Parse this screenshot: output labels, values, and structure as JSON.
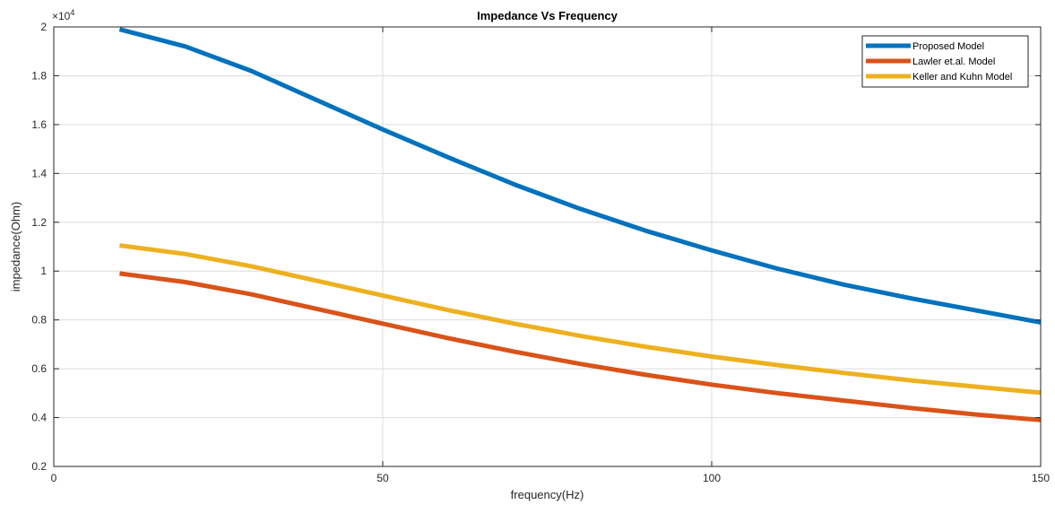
{
  "chart_data": {
    "type": "line",
    "title": "Impedance Vs Frequency",
    "xlabel": "frequency(Hz)",
    "ylabel": "impedance(Ohm)",
    "y_multiplier": "×10",
    "y_multiplier_exp": "4",
    "xlim": [
      0,
      150
    ],
    "ylim": [
      0.2,
      2
    ],
    "xticks": [
      0,
      50,
      100,
      150
    ],
    "xtick_labels": [
      "0",
      "50",
      "100",
      "150"
    ],
    "yticks": [
      0.2,
      0.4,
      0.6,
      0.8,
      1,
      1.2,
      1.4,
      1.6,
      1.8,
      2
    ],
    "ytick_labels": [
      "0.2",
      "0.4",
      "0.6",
      "0.8",
      "1",
      "1.2",
      "1.4",
      "1.6",
      "1.8",
      "2"
    ],
    "grid": true,
    "legend_position": "top-right",
    "x": [
      10,
      20,
      30,
      40,
      50,
      60,
      70,
      80,
      90,
      100,
      110,
      120,
      130,
      140,
      150
    ],
    "series": [
      {
        "name": "Proposed Model",
        "color": "#0072BD",
        "values": [
          1.99,
          1.92,
          1.82,
          1.7,
          1.58,
          1.465,
          1.355,
          1.255,
          1.165,
          1.085,
          1.01,
          0.945,
          0.89,
          0.84,
          0.79
        ]
      },
      {
        "name": "Lawler et.al. Model",
        "color": "#D95319",
        "values": [
          0.99,
          0.955,
          0.905,
          0.845,
          0.785,
          0.725,
          0.67,
          0.62,
          0.575,
          0.535,
          0.5,
          0.47,
          0.44,
          0.413,
          0.39
        ]
      },
      {
        "name": "Keller and Kuhn Model",
        "color": "#EDB120",
        "values": [
          1.105,
          1.07,
          1.02,
          0.96,
          0.9,
          0.84,
          0.785,
          0.735,
          0.69,
          0.65,
          0.615,
          0.583,
          0.553,
          0.527,
          0.502
        ]
      }
    ]
  }
}
